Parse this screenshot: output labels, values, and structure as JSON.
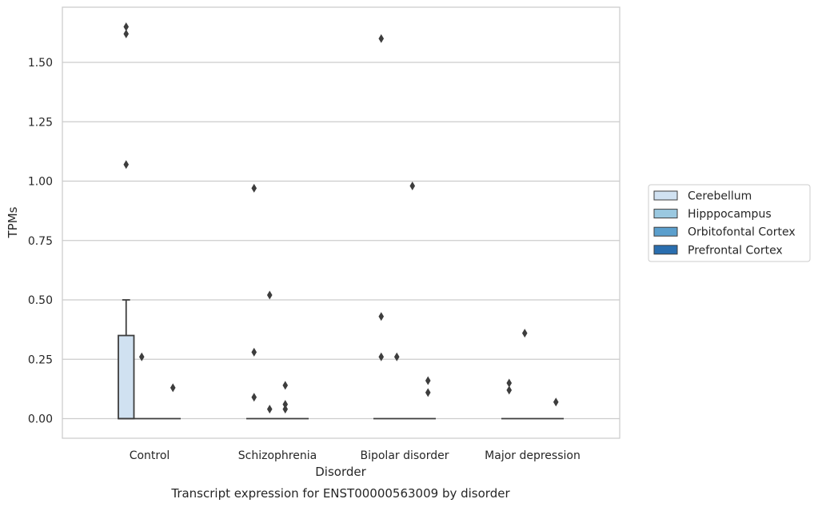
{
  "chart_data": {
    "type": "box",
    "title": "Transcript expression for ENST00000563009 by disorder",
    "xlabel": "Disorder",
    "ylabel": "TPMs",
    "categories": [
      "Control",
      "Schizophrenia",
      "Bipolar disorder",
      "Major depression"
    ],
    "ylim": [
      -0.08,
      1.75
    ],
    "yticks": [
      0.0,
      0.25,
      0.5,
      0.75,
      1.0,
      1.25,
      1.5
    ],
    "ytick_labels": [
      "0.00",
      "0.25",
      "0.50",
      "0.75",
      "1.00",
      "1.25",
      "1.50"
    ],
    "grid": true,
    "legend_position": "right",
    "series": [
      {
        "name": "Cerebellum",
        "color": "#d0e1f1",
        "boxes": [
          {
            "q1": 0,
            "median": 0,
            "q3": 0.35,
            "whisker_low": 0,
            "whisker_high": 0.5,
            "outliers": [
              1.07,
              1.62,
              1.65
            ]
          },
          {
            "q1": 0,
            "median": 0,
            "q3": 0,
            "whisker_low": 0,
            "whisker_high": 0,
            "outliers": [
              0.09,
              0.28,
              0.97
            ]
          },
          {
            "q1": 0,
            "median": 0,
            "q3": 0,
            "whisker_low": 0,
            "whisker_high": 0,
            "outliers": [
              0.26,
              0.43,
              1.6
            ]
          },
          {
            "q1": 0,
            "median": 0,
            "q3": 0,
            "whisker_low": 0,
            "whisker_high": 0,
            "outliers": [
              0.12,
              0.15
            ]
          }
        ]
      },
      {
        "name": "Hipppocampus",
        "color": "#9ac8e0",
        "boxes": [
          {
            "q1": 0,
            "median": 0,
            "q3": 0,
            "whisker_low": 0,
            "whisker_high": 0,
            "outliers": [
              0.26
            ]
          },
          {
            "q1": 0,
            "median": 0,
            "q3": 0,
            "whisker_low": 0,
            "whisker_high": 0,
            "outliers": [
              0.04,
              0.52
            ]
          },
          {
            "q1": 0,
            "median": 0,
            "q3": 0,
            "whisker_low": 0,
            "whisker_high": 0,
            "outliers": [
              0.26
            ]
          },
          {
            "q1": 0,
            "median": 0,
            "q3": 0,
            "whisker_low": 0,
            "whisker_high": 0,
            "outliers": [
              0.36
            ]
          }
        ]
      },
      {
        "name": "Orbitofontal Cortex",
        "color": "#5b9fcd",
        "boxes": [
          {
            "q1": 0,
            "median": 0,
            "q3": 0,
            "whisker_low": 0,
            "whisker_high": 0,
            "outliers": []
          },
          {
            "q1": 0,
            "median": 0,
            "q3": 0,
            "whisker_low": 0,
            "whisker_high": 0,
            "outliers": [
              0.04,
              0.06,
              0.14
            ]
          },
          {
            "q1": 0,
            "median": 0,
            "q3": 0,
            "whisker_low": 0,
            "whisker_high": 0,
            "outliers": [
              0.98
            ]
          },
          {
            "q1": 0,
            "median": 0,
            "q3": 0,
            "whisker_low": 0,
            "whisker_high": 0,
            "outliers": []
          }
        ]
      },
      {
        "name": "Prefrontal Cortex",
        "color": "#2a6eaf",
        "boxes": [
          {
            "q1": 0,
            "median": 0,
            "q3": 0,
            "whisker_low": 0,
            "whisker_high": 0,
            "outliers": [
              0.13
            ]
          },
          {
            "q1": 0,
            "median": 0,
            "q3": 0,
            "whisker_low": 0,
            "whisker_high": 0,
            "outliers": []
          },
          {
            "q1": 0,
            "median": 0,
            "q3": 0,
            "whisker_low": 0,
            "whisker_high": 0,
            "outliers": [
              0.11,
              0.16
            ]
          },
          {
            "q1": 0,
            "median": 0,
            "q3": 0,
            "whisker_low": 0,
            "whisker_high": 0,
            "outliers": [
              0.07
            ]
          }
        ]
      }
    ]
  }
}
